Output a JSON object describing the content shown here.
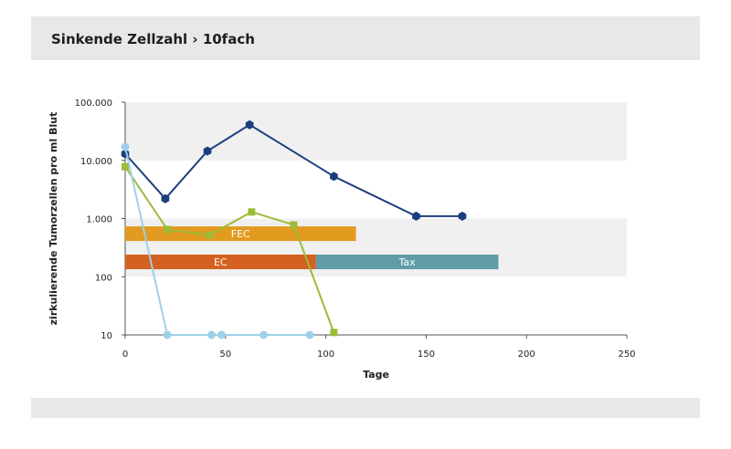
{
  "header": {
    "title": "Sinkende Zellzahl  › 10fach"
  },
  "chart_data": {
    "type": "line",
    "xlabel": "Tage",
    "ylabel": "zirkulierende Tumorzellen pro ml Blut",
    "xlim": [
      0,
      250
    ],
    "ylim": [
      10,
      100000
    ],
    "yscale": "log",
    "x_ticks": [
      0,
      50,
      100,
      150,
      200,
      250
    ],
    "x_tick_labels": [
      "0",
      "50",
      "100",
      "150",
      "200",
      "250"
    ],
    "y_ticks": [
      10,
      100,
      1000,
      10000,
      100000
    ],
    "y_tick_labels": [
      "10",
      "100",
      "1.000",
      "10.000",
      "100.000"
    ],
    "grid": "alternating horizontal bands",
    "series": [
      {
        "color": "#1b3f7e",
        "marker": "hexagon",
        "x": [
          0,
          20,
          41,
          62,
          104,
          145,
          168
        ],
        "y": [
          13000,
          2200,
          14500,
          41000,
          5300,
          1100,
          1100
        ]
      },
      {
        "color": "#9cbc38",
        "marker": "square",
        "x": [
          0,
          21,
          42,
          63,
          84,
          104
        ],
        "y": [
          7800,
          650,
          520,
          1300,
          780,
          11
        ]
      },
      {
        "color": "#9fd0ea",
        "marker": "circle",
        "x": [
          0,
          21,
          43,
          48,
          69,
          92
        ],
        "y": [
          17000,
          10,
          10,
          10,
          10,
          10
        ]
      }
    ],
    "bars": [
      {
        "label": "FEC",
        "start": 0,
        "end": 115,
        "level": 550,
        "color": "#e29a1f"
      },
      {
        "label": "EC",
        "start": 0,
        "end": 95,
        "level": 180,
        "color": "#d4611f"
      },
      {
        "label": "Tax",
        "start": 95,
        "end": 186,
        "level": 180,
        "color": "#5f9ca8"
      }
    ]
  }
}
